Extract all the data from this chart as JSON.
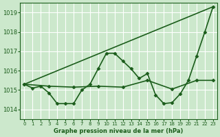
{
  "title": "",
  "xlabel": "Graphe pression niveau de la mer (hPa)",
  "background_color": "#cce8cc",
  "grid_color": "#ffffff",
  "line_color": "#1a5c1a",
  "ylim": [
    1013.5,
    1019.5
  ],
  "xlim": [
    -0.5,
    23.5
  ],
  "yticks": [
    1014,
    1015,
    1016,
    1017,
    1018,
    1019
  ],
  "xticks": [
    0,
    1,
    2,
    3,
    4,
    5,
    6,
    7,
    8,
    9,
    10,
    11,
    12,
    13,
    14,
    15,
    16,
    17,
    18,
    19,
    20,
    21,
    22,
    23
  ],
  "series": [
    {
      "x": [
        0,
        23
      ],
      "y": [
        1015.3,
        1019.3
      ],
      "marker": null,
      "markersize": 0,
      "linewidth": 1.2
    },
    {
      "x": [
        0,
        1,
        2,
        3,
        4,
        5,
        6,
        7,
        8,
        9,
        10,
        11,
        12,
        13,
        14,
        15,
        16,
        17,
        18,
        19,
        20,
        21,
        22,
        23
      ],
      "y": [
        1015.3,
        1015.1,
        1015.2,
        1014.85,
        1014.3,
        1014.3,
        1014.3,
        1015.0,
        1015.3,
        1016.1,
        1016.9,
        1016.9,
        1016.5,
        1016.1,
        1015.6,
        1015.85,
        1014.75,
        1014.3,
        1014.35,
        1014.8,
        1015.5,
        1016.75,
        1018.0,
        1019.3
      ],
      "marker": "D",
      "markersize": 2.5,
      "linewidth": 1.2
    },
    {
      "x": [
        0,
        3,
        6,
        9,
        12,
        15,
        18,
        21,
        23
      ],
      "y": [
        1015.3,
        1015.2,
        1015.15,
        1015.2,
        1015.15,
        1015.5,
        1015.05,
        1015.5,
        1015.5
      ],
      "marker": "D",
      "markersize": 2.5,
      "linewidth": 1.2
    }
  ]
}
